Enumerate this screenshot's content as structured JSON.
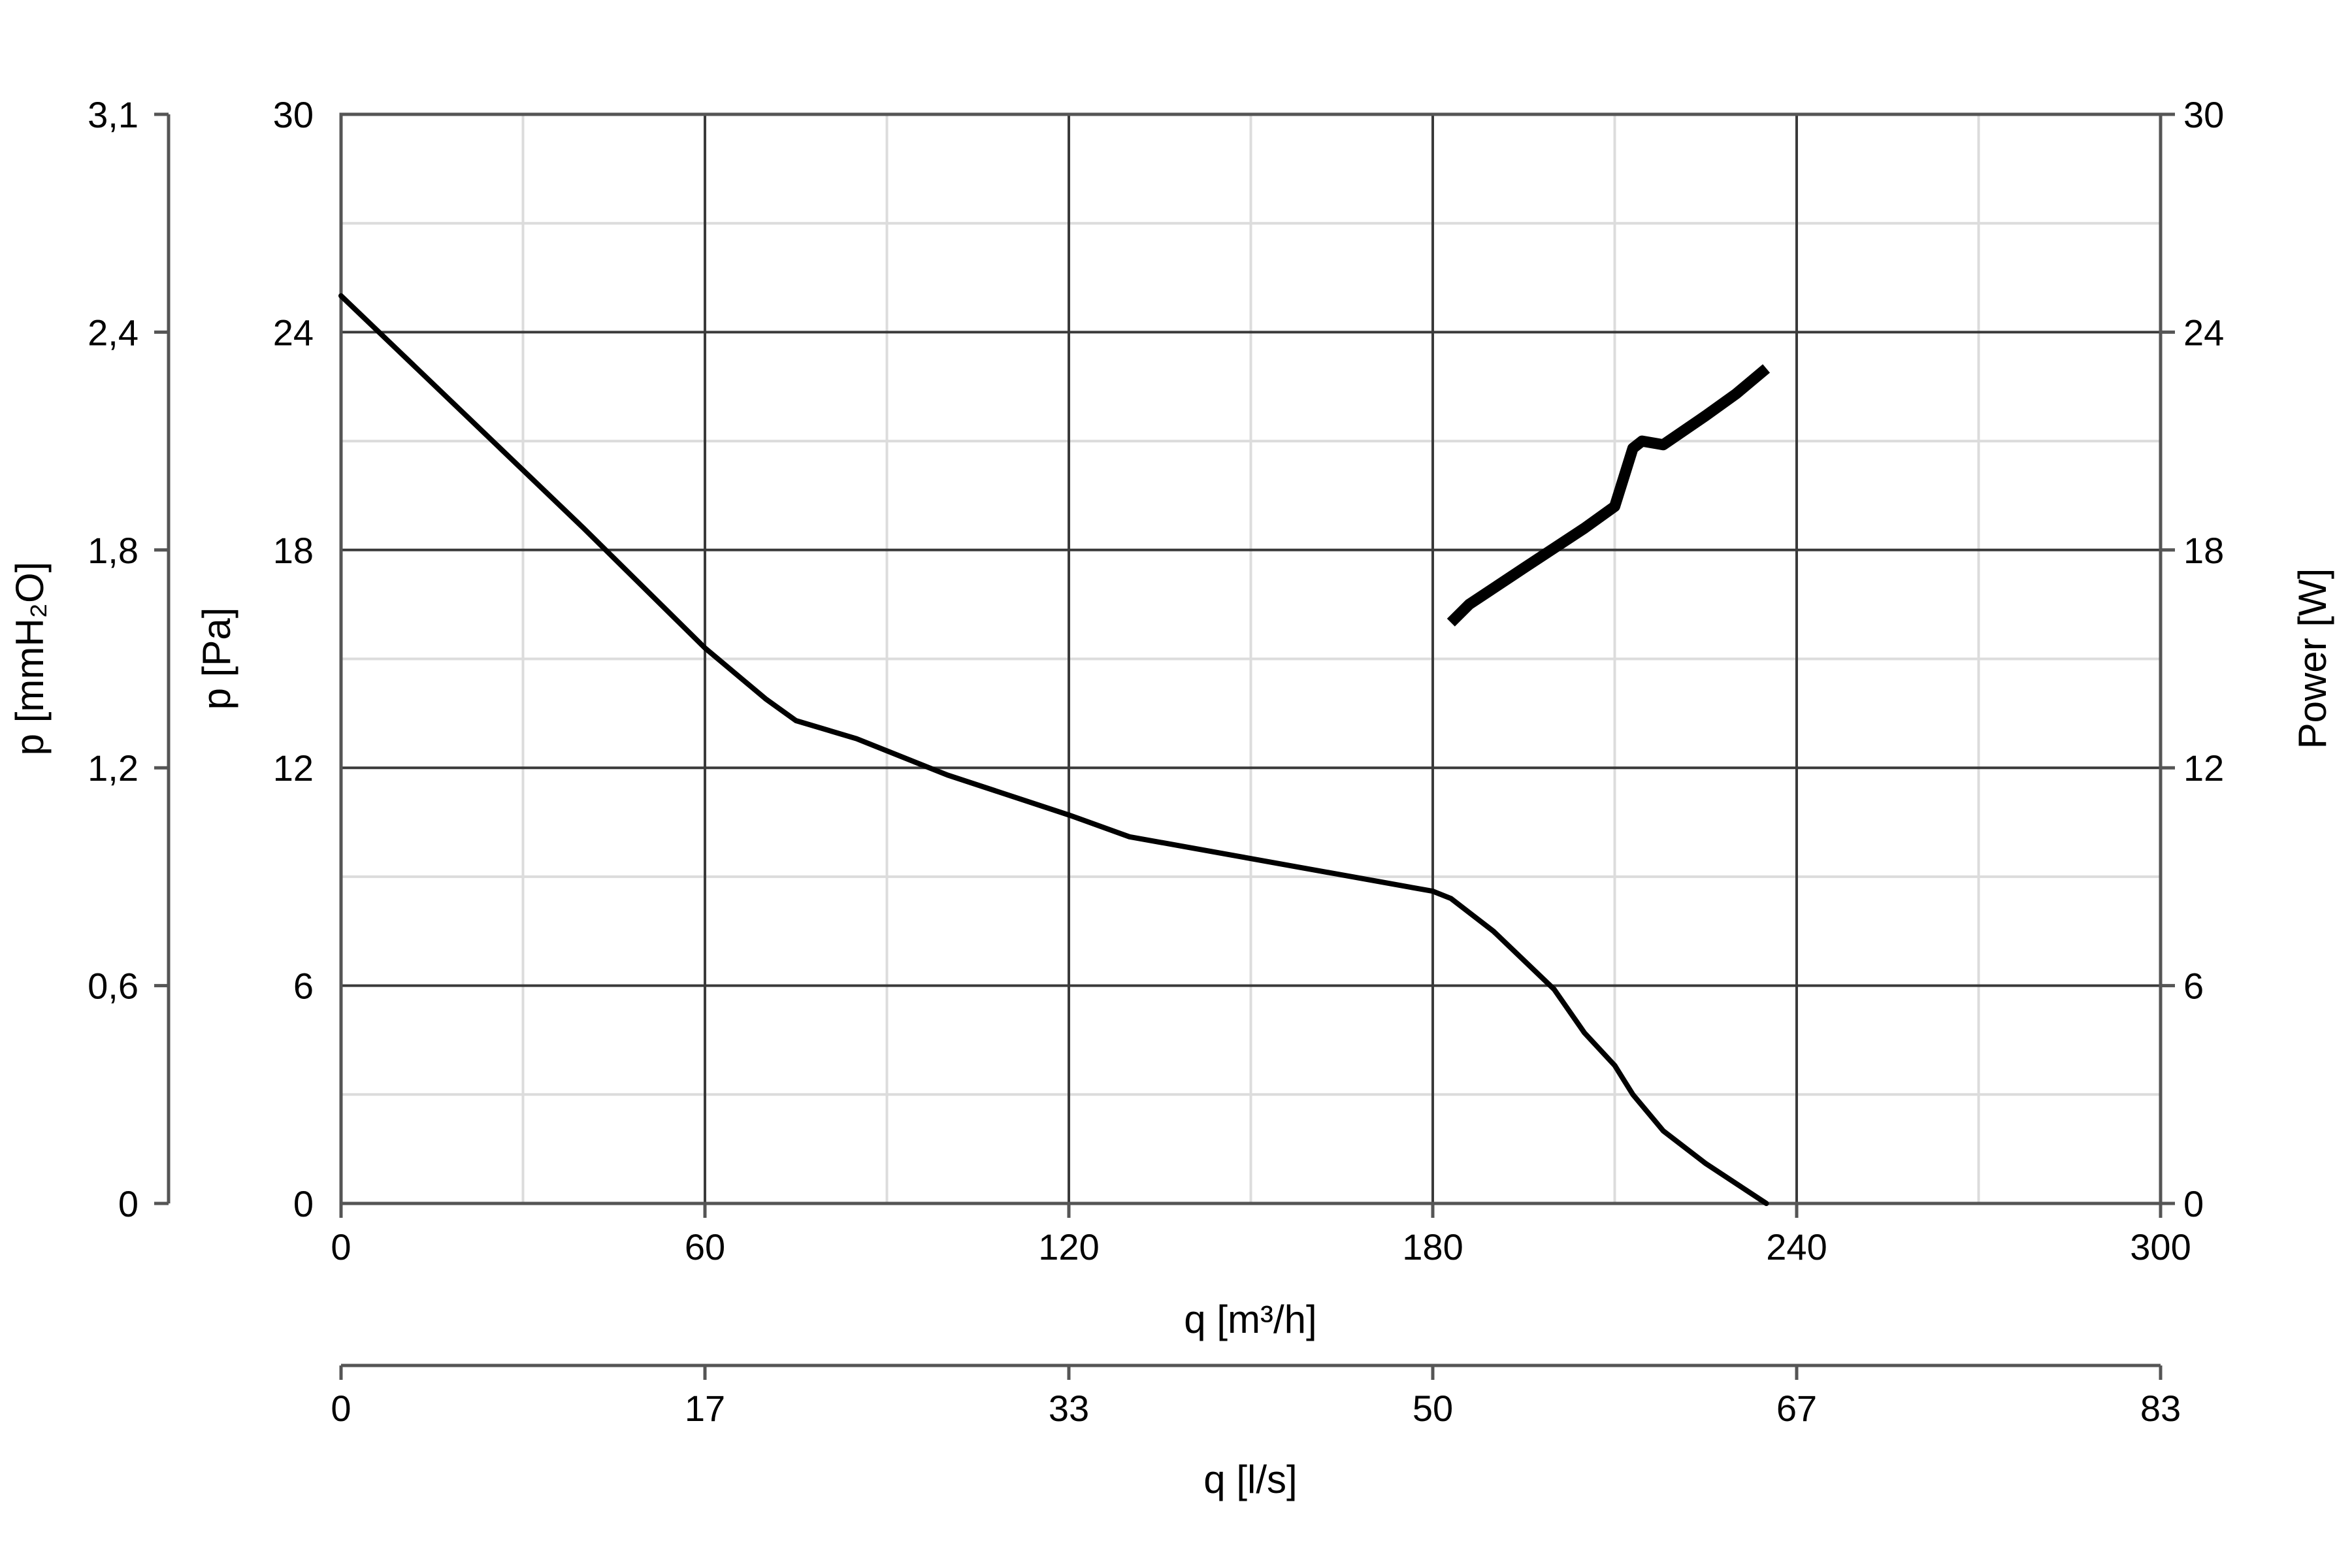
{
  "chart_data": {
    "type": "line",
    "title": "",
    "x_axis_primary": {
      "label": "q [m³/h]",
      "range": [
        0,
        300
      ],
      "ticks": [
        "0",
        "60",
        "120",
        "180",
        "240",
        "300"
      ]
    },
    "x_axis_secondary": {
      "label": "q [l/s]",
      "range": [
        0,
        83
      ],
      "ticks": [
        "0",
        "17",
        "33",
        "50",
        "67",
        "83"
      ]
    },
    "y_axis_left_inner": {
      "label": "p [Pa]",
      "range": [
        0,
        30
      ],
      "ticks": [
        "0",
        "6",
        "12",
        "18",
        "24",
        "30"
      ]
    },
    "y_axis_left_outer": {
      "label": "p [mmH₂O]",
      "range": [
        0,
        3.1
      ],
      "ticks": [
        "0",
        "0,6",
        "1,2",
        "1,8",
        "2,4",
        "3,1"
      ]
    },
    "y_axis_right": {
      "label": "Power [W]",
      "range": [
        0,
        30
      ],
      "ticks": [
        "0",
        "6",
        "12",
        "18",
        "24",
        "30"
      ]
    },
    "grid": true,
    "series": [
      {
        "axis": "left",
        "color": "#000000",
        "x": [
          0,
          20,
          40,
          60,
          70,
          75,
          85,
          100,
          120,
          130,
          140,
          160,
          180,
          183,
          190,
          200,
          205,
          210,
          213,
          218,
          225,
          235
        ],
        "y": [
          25,
          21.8,
          18.6,
          15.3,
          13.9,
          13.3,
          12.8,
          11.8,
          10.7,
          10.1,
          9.8,
          9.2,
          8.6,
          8.4,
          7.5,
          5.9,
          4.7,
          3.8,
          3.0,
          2.0,
          1.1,
          0
        ]
      },
      {
        "axis": "right",
        "color": "#000000",
        "x": [
          183,
          186,
          195,
          205,
          210,
          211.5,
          213,
          214.5,
          218,
          225,
          230,
          235
        ],
        "y": [
          16,
          16.5,
          17.5,
          18.6,
          19.2,
          20.0,
          20.8,
          21.0,
          20.9,
          21.7,
          22.3,
          23.0
        ]
      }
    ]
  }
}
